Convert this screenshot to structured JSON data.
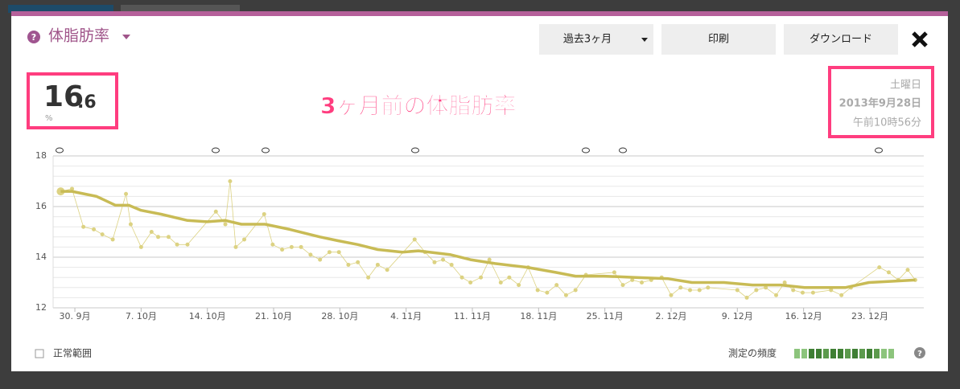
{
  "header": {
    "title": "体脂肪率",
    "buttons": [
      "過去3ヶ月",
      "印刷",
      "ダウンロード"
    ]
  },
  "reading": {
    "value_integer": "16",
    "value_decimal": ".6",
    "unit": "%",
    "weekday": "土曜日",
    "date": "2013年9月28日",
    "time": "午前10時56分"
  },
  "annotation": "3ヶ月前の体脂肪率",
  "footer": {
    "normal_range": "正常範囲",
    "frequency": "測定の頻度"
  },
  "chart_data": {
    "type": "line",
    "xlim": [
      -0.3,
      91.7
    ],
    "xticks": [
      {
        "value": 2,
        "label": "30. 9月"
      },
      {
        "value": 9,
        "label": "7. 10月"
      },
      {
        "value": 16,
        "label": "14. 10月"
      },
      {
        "value": 23,
        "label": "21. 10月"
      },
      {
        "value": 30,
        "label": "28. 10月"
      },
      {
        "value": 37,
        "label": "4. 11月"
      },
      {
        "value": 44,
        "label": "11. 11月"
      },
      {
        "value": 51,
        "label": "18. 11月"
      },
      {
        "value": 58,
        "label": "25. 11月"
      },
      {
        "value": 65,
        "label": "2. 12月"
      },
      {
        "value": 72,
        "label": "9. 12月"
      },
      {
        "value": 79,
        "label": "16. 12月"
      },
      {
        "value": 86,
        "label": "23. 12月"
      }
    ],
    "ylim": [
      12,
      18
    ],
    "yticks": [
      12,
      14,
      16,
      18
    ],
    "y_minor_ticks": [
      12.4,
      12.8,
      13.2,
      13.6,
      14.4,
      14.8,
      15.2,
      15.6,
      16.4,
      16.8,
      17.2,
      17.6
    ],
    "grid": true,
    "series": [
      {
        "color": "#dcd282",
        "markers": true,
        "line_width": 0.8,
        "x": [
          0.5,
          1.7,
          2.9,
          4.0,
          4.9,
          6.0,
          7.4,
          7.9,
          9.0,
          10.1,
          10.8,
          11.9,
          12.8,
          13.9,
          16.9,
          17.9,
          18.4,
          19.0,
          19.9,
          22.0,
          22.9,
          23.9,
          24.9,
          25.9,
          26.9,
          27.9,
          28.9,
          29.9,
          30.9,
          31.9,
          33.0,
          34.0,
          35.0,
          37.9,
          39.0,
          40.0,
          40.9,
          41.8,
          42.9,
          43.8,
          44.9,
          45.8,
          47.0,
          47.9,
          48.9,
          49.9,
          50.9,
          51.9,
          52.9,
          53.9,
          54.9,
          56.0,
          59.0,
          59.9,
          60.9,
          61.9,
          62.9,
          64.0,
          65.0,
          66.0,
          67.0,
          68.0,
          68.9,
          72.0,
          73.0,
          74.0,
          75.0,
          76.1,
          77.0,
          77.9,
          78.9,
          80.0,
          81.9,
          83.0,
          84.0,
          87.0,
          88.0,
          89.0,
          90.0,
          90.8
        ],
        "values": [
          16.6,
          16.7,
          15.2,
          15.1,
          14.9,
          14.7,
          16.5,
          15.3,
          14.4,
          15.0,
          14.8,
          14.8,
          14.5,
          14.5,
          15.8,
          15.3,
          17.0,
          14.4,
          14.7,
          15.7,
          14.5,
          14.3,
          14.4,
          14.4,
          14.1,
          13.9,
          14.2,
          14.2,
          13.7,
          13.8,
          13.2,
          13.7,
          13.5,
          14.7,
          14.2,
          13.8,
          13.9,
          13.7,
          13.2,
          13.0,
          13.2,
          13.9,
          13.0,
          13.2,
          12.9,
          13.6,
          12.7,
          12.6,
          12.9,
          12.5,
          12.7,
          13.3,
          13.4,
          12.9,
          13.1,
          13.0,
          13.1,
          13.2,
          12.5,
          12.8,
          12.7,
          12.7,
          12.8,
          12.7,
          12.4,
          12.7,
          12.8,
          12.5,
          13.0,
          12.7,
          12.6,
          12.6,
          12.7,
          12.5,
          12.8,
          13.6,
          13.4,
          13.1,
          13.5,
          13.1
        ]
      },
      {
        "color": "#c8bb55",
        "markers": false,
        "line_width": 3.5,
        "x": [
          0.5,
          1.7,
          4.3,
          6.3,
          7.7,
          9.0,
          11.1,
          13.9,
          16.0,
          17.9,
          19.6,
          22.1,
          24.7,
          27.9,
          29.8,
          31.9,
          34.0,
          36.6,
          38.3,
          41.7,
          43.8,
          46.4,
          49.8,
          52.8,
          54.9,
          57.9,
          61.3,
          64.7,
          67.2,
          70.6,
          73.6,
          76.6,
          79.1,
          83.4,
          85.9,
          88.5,
          90.8
        ],
        "values": [
          16.6,
          16.6,
          16.4,
          16.05,
          16.05,
          15.85,
          15.7,
          15.45,
          15.4,
          15.45,
          15.3,
          15.3,
          15.1,
          14.8,
          14.65,
          14.5,
          14.3,
          14.2,
          14.25,
          14.1,
          13.9,
          13.75,
          13.6,
          13.4,
          13.25,
          13.25,
          13.2,
          13.15,
          13.0,
          13.0,
          12.9,
          12.9,
          12.8,
          12.8,
          13.0,
          13.05,
          13.1
        ]
      }
    ]
  }
}
